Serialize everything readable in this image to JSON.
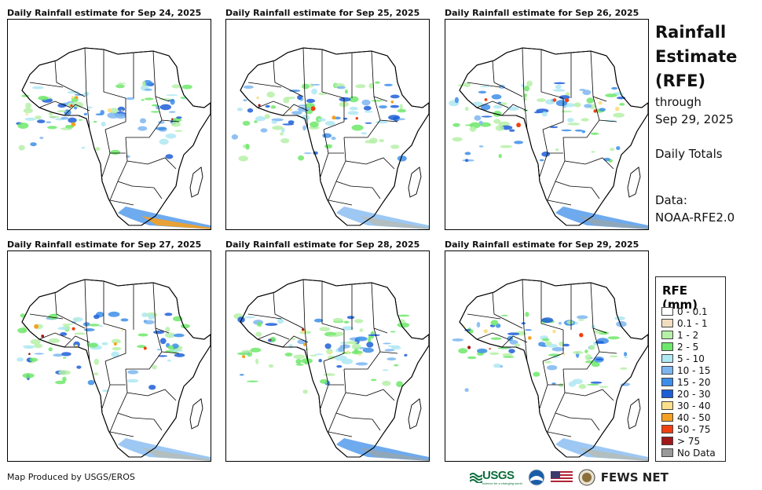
{
  "panels": [
    {
      "title": "Daily Rainfall estimate for Sep 24, 2025"
    },
    {
      "title": "Daily Rainfall estimate for Sep 25, 2025"
    },
    {
      "title": "Daily Rainfall estimate for Sep 26, 2025"
    },
    {
      "title": "Daily Rainfall estimate for Sep 27, 2025"
    },
    {
      "title": "Daily Rainfall estimate for Sep 28, 2025"
    },
    {
      "title": "Daily Rainfall estimate for Sep 29, 2025"
    }
  ],
  "sidebar": {
    "title_line1": "Rainfall",
    "title_line2": "Estimate",
    "title_line3": "(RFE)",
    "through": "through",
    "date": "Sep 29, 2025",
    "totals": "Daily Totals",
    "data_label": "Data:",
    "data_source": "NOAA-RFE2.0"
  },
  "legend": {
    "title": "RFE (mm)",
    "items": [
      {
        "label": "0 - 0.1",
        "color": "#ffffff"
      },
      {
        "label": "0.1 - 1",
        "color": "#f2dcc0"
      },
      {
        "label": "1 - 2",
        "color": "#b6f0a8"
      },
      {
        "label": "2 - 5",
        "color": "#6ee86a"
      },
      {
        "label": "5 - 10",
        "color": "#aee8f2"
      },
      {
        "label": "10 - 15",
        "color": "#7cb6f0"
      },
      {
        "label": "15 - 20",
        "color": "#3d8ee8"
      },
      {
        "label": "20 - 30",
        "color": "#1e5fd8"
      },
      {
        "label": "30 - 40",
        "color": "#fbe08a"
      },
      {
        "label": "40 - 50",
        "color": "#f5a020"
      },
      {
        "label": "50 - 75",
        "color": "#f04010"
      },
      {
        "label": "> 75",
        "color": "#a01818"
      },
      {
        "label": "No Data",
        "color": "#999999"
      }
    ]
  },
  "footer": {
    "credit": "Map Produced by USGS/EROS",
    "usgs": "USGS",
    "usgs_tagline": "science for a changing world",
    "fews": "FEWS NET"
  }
}
